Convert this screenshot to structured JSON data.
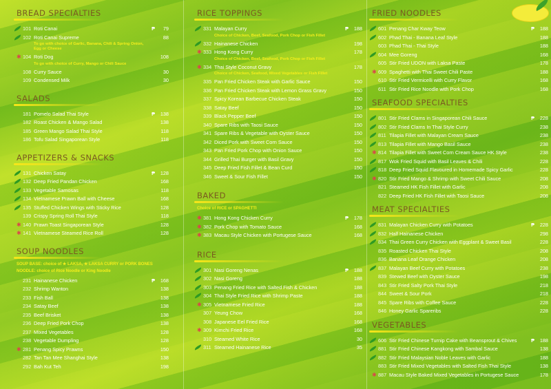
{
  "currency_symbol": "₱",
  "colors": {
    "heading": "#7a5a20",
    "note": "#f5ee1c",
    "item_text": "#ffffff",
    "star": "#d9484a",
    "leaf": "#2f9a23"
  },
  "columns": [
    [
      {
        "title": "BREAD SPECIALTIES",
        "items": [
          {
            "code": "101",
            "name": "Roti Canai",
            "price": "79",
            "mark": "leaf"
          },
          {
            "code": "102",
            "name": "Roti Canai Supreme",
            "desc": "To go with choice of Garlic, Banana, Chili & Spring Onion, Egg or Cheese",
            "price": "88",
            "mark": "leaf"
          },
          {
            "code": "104",
            "name": "Roti Dog",
            "desc": "To go with choice of Curry, Mango or Chili Sauce",
            "price": "108",
            "mark": "star"
          },
          {
            "code": "108",
            "name": "Curry Sauce",
            "price": "30"
          },
          {
            "code": "109",
            "name": "Condensed Milk",
            "price": "30"
          }
        ]
      },
      {
        "title": "SALADS",
        "items": [
          {
            "code": "181",
            "name": "Pomelo Salad Thai Style",
            "price": "138"
          },
          {
            "code": "182",
            "name": "Roast Chicken & Mango Salad",
            "price": "138"
          },
          {
            "code": "185",
            "name": "Green Mango Salad Thai Style",
            "price": "118"
          },
          {
            "code": "186",
            "name": "Tofu Salad Singaporean Style",
            "price": "118"
          }
        ]
      },
      {
        "title": "APPETIZERS & SNACKS",
        "items": [
          {
            "code": "131",
            "name": "Chicken Satay",
            "price": "128",
            "mark": "leaf"
          },
          {
            "code": "132",
            "name": "Deep Fried Pandan Chicken",
            "price": "168",
            "mark": "leaf"
          },
          {
            "code": "133",
            "name": "Vegetable Samosas",
            "price": "118",
            "mark": "leaf"
          },
          {
            "code": "134",
            "name": "Vietnamese Prawn Ball with Cheese",
            "price": "168",
            "mark": "leaf"
          },
          {
            "code": "135",
            "name": "Stuffed Chicken Wings with Sticky Rice",
            "price": "128",
            "mark": "leaf"
          },
          {
            "code": "139",
            "name": "Crispy Spring Roll Thai Style",
            "price": "118"
          },
          {
            "code": "140",
            "name": "Prawn Toast Singaporean Style",
            "price": "128",
            "mark": "star"
          },
          {
            "code": "141",
            "name": "Vietnamese Steamed Rice Roll",
            "price": "128",
            "mark": "star"
          }
        ]
      },
      {
        "title": "SOUP NOODLES",
        "note": [
          "SOUP BASE: choice of ★ LAKSA, ★ LAKSA CURRY or PORK BONES",
          "NOODLE: choice of Rice Noodle or King Noodle"
        ],
        "items": [
          {
            "code": "231",
            "name": "Hainanese Chicken",
            "price": "168"
          },
          {
            "code": "232",
            "name": "Shrimp Wanton",
            "price": "138"
          },
          {
            "code": "233",
            "name": "Fish Ball",
            "price": "138"
          },
          {
            "code": "234",
            "name": "Satay Beef",
            "price": "138"
          },
          {
            "code": "235",
            "name": "Beef Brisket",
            "price": "138"
          },
          {
            "code": "236",
            "name": "Deep Fried Pork Chop",
            "price": "138"
          },
          {
            "code": "237",
            "name": "Mixed Vegetables",
            "price": "128"
          },
          {
            "code": "238",
            "name": "Vegetable Dumpling",
            "price": "128"
          },
          {
            "code": "281",
            "name": "Penang Spicy Prawns",
            "price": "150",
            "mark": "star"
          },
          {
            "code": "282",
            "name": "Tan Tan Mee Shanghai Style",
            "price": "138"
          },
          {
            "code": "292",
            "name": "Bah Kut Teh",
            "price": "198"
          }
        ]
      }
    ],
    [
      {
        "title": "RICE TOPPINGS",
        "items": [
          {
            "code": "331",
            "name": "Malayan Curry",
            "desc": "Choice of Chicken, Beef, Seafood, Pork Chop or Fish Fillet",
            "price": "188",
            "mark": "leaf"
          },
          {
            "code": "332",
            "name": "Hainanese Chicken",
            "price": "198",
            "mark": "leaf"
          },
          {
            "code": "333",
            "name": "Hong Kong Curry",
            "desc": "Choice of Chicken, Beef, Seafood, Pork Chop or Fish Fillet",
            "price": "178",
            "mark": "star"
          },
          {
            "code": "334",
            "name": "Thai Style Coconut Gravy",
            "desc": "Choice of Chicken, Seafood, Mixed Vegetables or Fish Fillet",
            "price": "178",
            "mark": "star"
          },
          {
            "code": "335",
            "name": "Pan Fried Chicken Steak with Garlic Sauce",
            "price": "150"
          },
          {
            "code": "336",
            "name": "Pan Fried Chicken Steak with Lemon Grass Gravy",
            "price": "150"
          },
          {
            "code": "337",
            "name": "Spicy Korean Barbecue Chicken Steak",
            "price": "150"
          },
          {
            "code": "338",
            "name": "Satay Beef",
            "price": "150"
          },
          {
            "code": "339",
            "name": "Black Pepper Beef",
            "price": "150"
          },
          {
            "code": "340",
            "name": "Spare Ribs with Taosi Sauce",
            "price": "150"
          },
          {
            "code": "341",
            "name": "Spare Ribs & Vegetable with Oyster Sauce",
            "price": "150"
          },
          {
            "code": "342",
            "name": "Diced Pork with Sweet Corn Sauce",
            "price": "150"
          },
          {
            "code": "343",
            "name": "Pan Fried Pork Chop with Onion Sauce",
            "price": "150"
          },
          {
            "code": "344",
            "name": "Grilled Thai Burger with Basil Gravy",
            "price": "150"
          },
          {
            "code": "345",
            "name": "Deep Fried Fish Fillet & Bean Curd",
            "price": "150"
          },
          {
            "code": "346",
            "name": "Sweet & Sour Fish Fillet",
            "price": "150"
          }
        ]
      },
      {
        "title": "BAKED",
        "note": [
          "Choice of RICE or SPAGHETTI"
        ],
        "items": [
          {
            "code": "381",
            "name": "Hong Kong Chicken Curry",
            "price": "178",
            "mark": "star"
          },
          {
            "code": "382",
            "name": "Pork Chop with Tomato Sauce",
            "price": "168",
            "mark": "star"
          },
          {
            "code": "383",
            "name": "Macau Style Chicken with Portugese Sauce",
            "price": "168",
            "mark": "star"
          }
        ]
      },
      {
        "title": "RICE",
        "items": [
          {
            "code": "301",
            "name": "Nasi Goreng Nenas",
            "price": "188",
            "mark": "leaf"
          },
          {
            "code": "302",
            "name": "Nasi Goreng",
            "price": "188",
            "mark": "leaf"
          },
          {
            "code": "303",
            "name": "Penang Fried Rice with Salted Fish & Chicken",
            "price": "188",
            "mark": "leaf"
          },
          {
            "code": "304",
            "name": "Thai Style Fried Rice with Shrimp Paste",
            "price": "188",
            "mark": "leaf"
          },
          {
            "code": "305",
            "name": "Vietnamese Fried Rice",
            "price": "188",
            "mark": "star"
          },
          {
            "code": "307",
            "name": "Yeung Chow",
            "price": "168"
          },
          {
            "code": "308",
            "name": "Japanese Eel Fried Rice",
            "price": "168"
          },
          {
            "code": "309",
            "name": "Kimchi Fried Rice",
            "price": "168",
            "mark": "star"
          },
          {
            "code": "310",
            "name": "Steamed White Rice",
            "price": "30"
          },
          {
            "code": "311",
            "name": "Steamed Hainanese Rice",
            "price": "35",
            "mark": "leaf"
          }
        ]
      }
    ],
    [
      {
        "title": "FRIED NOODLES",
        "items": [
          {
            "code": "601",
            "name": "Penang Char Kway Teow",
            "price": "188",
            "mark": "leaf"
          },
          {
            "code": "602",
            "name": "Phad Thai - Banana Leaf Style",
            "price": "188",
            "mark": "leaf"
          },
          {
            "code": "603",
            "name": "Phad Thai - Thai Style",
            "price": "188"
          },
          {
            "code": "604",
            "name": "Mee Goreng",
            "price": "168",
            "mark": "leaf"
          },
          {
            "code": "605",
            "name": "Stir Fried UDON with Laksa Paste",
            "price": "178"
          },
          {
            "code": "609",
            "name": "Spaghetti with Thai Sweet Chili Paste",
            "price": "188",
            "mark": "star"
          },
          {
            "code": "610",
            "name": "Stir Fried Vermicelli with Curry Flavor",
            "price": "168"
          },
          {
            "code": "611",
            "name": "Stir Fried Rice Noodle with Pork Chop",
            "price": "168"
          }
        ]
      },
      {
        "title": "SEAFOOD SPECIALTIES",
        "items": [
          {
            "code": "801",
            "name": "Stir Fried Clams in Singaporean Chili Sauce",
            "price": "228",
            "mark": "leaf"
          },
          {
            "code": "802",
            "name": "Stir Fried Clams In Thai Style Curry",
            "price": "238",
            "mark": "leaf"
          },
          {
            "code": "811",
            "name": "Tilapia Fillet with Malayan Cream Sauce",
            "price": "238",
            "mark": "leaf"
          },
          {
            "code": "813",
            "name": "Tilapia Fillet with Mango Basil Sauce",
            "price": "238",
            "mark": "leaf"
          },
          {
            "code": "814",
            "name": "Tilapia Fillet with Sweet Corn Cream Sauce HK Style",
            "price": "238",
            "mark": "star"
          },
          {
            "code": "817",
            "name": "Wok Fried Squid with Basil Leaves & Chili",
            "price": "228",
            "mark": "leaf"
          },
          {
            "code": "818",
            "name": "Deep Fried Squid Flavoured in Homemade Spicy Garlic",
            "price": "228",
            "mark": "leaf"
          },
          {
            "code": "820",
            "name": "Stir Fried Mango & Shrimp with Sweet Chili Sauce",
            "price": "208",
            "mark": "star"
          },
          {
            "code": "821",
            "name": "Steamed HK Fish Fillet with Garlic",
            "price": "208"
          },
          {
            "code": "822",
            "name": "Deep Fried HK Fish Fillet with Taosi Sauce",
            "price": "208"
          }
        ]
      },
      {
        "title": "MEAT SPECIALTIES",
        "items": [
          {
            "code": "831",
            "name": "Malayan Chicken Curry with Potatoes",
            "price": "228",
            "mark": "leaf"
          },
          {
            "code": "832",
            "name": "Half Hainanese Chicken",
            "price": "298",
            "mark": "leaf"
          },
          {
            "code": "834",
            "name": "Thai Green Curry Chicken with Eggplant & Sweet Basil",
            "price": "228",
            "mark": "leaf"
          },
          {
            "code": "835",
            "name": "Roasted Chicken Thai Style",
            "price": "208"
          },
          {
            "code": "836",
            "name": "Banana Leaf Orange Chicken",
            "price": "208"
          },
          {
            "code": "837",
            "name": "Malayan Beef Curry with Potatoes",
            "price": "238",
            "mark": "leaf"
          },
          {
            "code": "839",
            "name": "Stewed Beef with Oyster Sauce",
            "price": "198"
          },
          {
            "code": "843",
            "name": "Stir Fried Salty Pork Thai Style",
            "price": "218"
          },
          {
            "code": "844",
            "name": "Sweet & Sour Pork",
            "price": "218"
          },
          {
            "code": "845",
            "name": "Spare Ribs with Coffee Sauce",
            "price": "228"
          },
          {
            "code": "846",
            "name": "Honey Garlic Spareribs",
            "price": "228"
          }
        ]
      },
      {
        "title": "VEGETABLES",
        "items": [
          {
            "code": "606",
            "name": "Stir Fried Chinese Turnip Cake with Beansprout & Chives",
            "price": "188",
            "mark": "leaf"
          },
          {
            "code": "881",
            "name": "Stir Fried Chinese Kangkong with Sambal Sauce",
            "price": "138",
            "mark": "leaf"
          },
          {
            "code": "882",
            "name": "Stir Fried Malaysian Noble Leaves with Garlic",
            "price": "188",
            "mark": "leaf"
          },
          {
            "code": "883",
            "name": "Stir Fried Mixed Vegetables with Salted Fish Thai Style",
            "price": "138"
          },
          {
            "code": "887",
            "name": "Macau Style Baked Mixed Vegetables in Portugese Sauce",
            "price": "178",
            "mark": "star"
          }
        ]
      }
    ]
  ]
}
